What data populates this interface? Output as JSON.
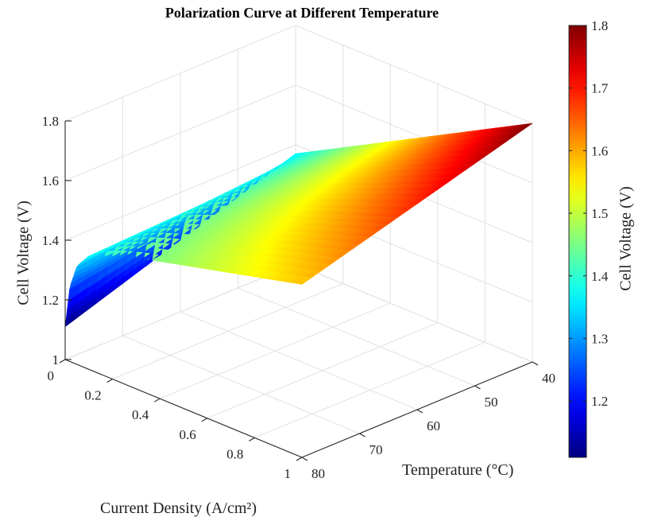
{
  "chart_data": {
    "type": "surface",
    "title": "Polarization Curve at Different Temperature",
    "xlabel": "Current Density (A/cm²)",
    "ylabel": "Temperature (°C)",
    "zlabel": "Cell Voltage (V)",
    "colorbar_label": "Cell Voltage (V)",
    "colormap": "jet",
    "xlim": [
      0,
      1
    ],
    "ylim": [
      40,
      80
    ],
    "zlim": [
      1,
      1.8
    ],
    "clim": [
      1.11,
      1.8
    ],
    "x_ticks": [
      "0",
      "0.2",
      "0.4",
      "0.6",
      "0.8",
      "1"
    ],
    "y_ticks": [
      "40",
      "50",
      "60",
      "70",
      "80"
    ],
    "z_ticks": [
      "1",
      "1.2",
      "1.4",
      "1.6",
      "1.8"
    ],
    "colorbar_ticks": [
      "1.2",
      "1.3",
      "1.4",
      "1.5",
      "1.6",
      "1.7",
      "1.8"
    ],
    "grid": true,
    "model": {
      "at_80C": {
        "current_density": [
          0,
          0.02,
          0.05,
          0.1,
          0.2,
          0.3,
          0.4,
          0.6,
          0.8,
          1.0
        ],
        "voltage": [
          1.11,
          1.25,
          1.33,
          1.38,
          1.415,
          1.44,
          1.46,
          1.5,
          1.54,
          1.58
        ]
      },
      "at_40C": {
        "current_density": [
          0,
          1.0
        ],
        "voltage": [
          1.37,
          1.8
        ]
      }
    }
  }
}
